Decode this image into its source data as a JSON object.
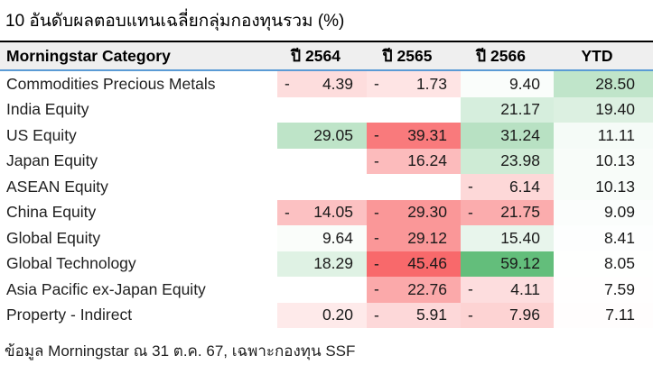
{
  "title": "10 อันดับผลตอบแทนเฉลี่ยกลุ่มกองทุนรวม (%)",
  "footer": "ข้อมูล Morningstar ณ 31 ต.ค. 67, เฉพาะกองทุน SSF",
  "colors": {
    "header_bg": "#efefef",
    "header_top_rule": "#000000",
    "header_bottom_rule": "#5b9bd5",
    "scale_min_red": "#F8696B",
    "scale_mid_white": "#FFFFFF",
    "scale_max_green": "#63BE7B"
  },
  "chart_data": {
    "type": "table",
    "title": "10 อันดับผลตอบแทนเฉลี่ยกลุ่มกองทุนรวม (%)",
    "columns": [
      "Morningstar Category",
      "ปี 2564",
      "ปี 2565",
      "ปี 2566",
      "YTD"
    ],
    "conditional_formatting": {
      "style": "3-color scale red-white-green (Excel)",
      "min": {
        "value": -45.46,
        "color": "#F8696B"
      },
      "mid": {
        "value": 7.82,
        "color": "#FFFFFF"
      },
      "max": {
        "value": 59.12,
        "color": "#63BE7B"
      },
      "negative_display": "minus sign flush-left, magnitude right-aligned"
    },
    "rows": [
      {
        "category": "Commodities Precious Metals",
        "cells": [
          {
            "value": -4.39,
            "display": "4.39",
            "negative": true,
            "bg": "#FDDDDD"
          },
          {
            "value": -1.73,
            "display": "1.73",
            "negative": true,
            "bg": "#FEE4E4"
          },
          {
            "value": 9.4,
            "display": "9.40",
            "negative": false,
            "bg": "#FAFDFB"
          },
          {
            "value": 28.5,
            "display": "28.50",
            "negative": false,
            "bg": "#C0E5CA"
          }
        ]
      },
      {
        "category": "India Equity",
        "cells": [
          null,
          null,
          {
            "value": 21.17,
            "display": "21.17",
            "negative": false,
            "bg": "#D6EEDD"
          },
          {
            "value": 19.4,
            "display": "19.40",
            "negative": false,
            "bg": "#DCF0E1"
          }
        ]
      },
      {
        "category": "US Equity",
        "cells": [
          {
            "value": 29.05,
            "display": "29.05",
            "negative": false,
            "bg": "#BEE4C8"
          },
          {
            "value": -39.31,
            "display": "39.31",
            "negative": true,
            "bg": "#F97A7C"
          },
          {
            "value": 31.24,
            "display": "31.24",
            "negative": false,
            "bg": "#B8E1C3"
          },
          {
            "value": 11.11,
            "display": "11.11",
            "negative": false,
            "bg": "#F5FBF7"
          }
        ]
      },
      {
        "category": "Japan Equity",
        "cells": [
          null,
          {
            "value": -16.24,
            "display": "16.24",
            "negative": true,
            "bg": "#FCBBBC"
          },
          {
            "value": 23.98,
            "display": "23.98",
            "negative": false,
            "bg": "#CEEBD5"
          },
          {
            "value": 10.13,
            "display": "10.13",
            "negative": false,
            "bg": "#F8FCF9"
          }
        ]
      },
      {
        "category": "ASEAN Equity",
        "cells": [
          null,
          null,
          {
            "value": -6.14,
            "display": "6.14",
            "negative": true,
            "bg": "#FDD8D8"
          },
          {
            "value": 10.13,
            "display": "10.13",
            "negative": false,
            "bg": "#F8FCF9"
          }
        ]
      },
      {
        "category": "China Equity",
        "cells": [
          {
            "value": -14.05,
            "display": "14.05",
            "negative": true,
            "bg": "#FCC1C2"
          },
          {
            "value": -29.3,
            "display": "29.30",
            "negative": true,
            "bg": "#FA9798"
          },
          {
            "value": -21.75,
            "display": "21.75",
            "negative": true,
            "bg": "#FBACAD"
          },
          {
            "value": 9.09,
            "display": "9.09",
            "negative": false,
            "bg": "#FBFDFC"
          }
        ]
      },
      {
        "category": "Global Equity",
        "cells": [
          {
            "value": 9.64,
            "display": "9.64",
            "negative": false,
            "bg": "#FAFDFA"
          },
          {
            "value": -29.12,
            "display": "29.12",
            "negative": true,
            "bg": "#FA9798"
          },
          {
            "value": 15.4,
            "display": "15.40",
            "negative": false,
            "bg": "#E8F5EC"
          },
          {
            "value": 8.41,
            "display": "8.41",
            "negative": false,
            "bg": "#FDFEFE"
          }
        ]
      },
      {
        "category": "Global Technology",
        "cells": [
          {
            "value": 18.29,
            "display": "18.29",
            "negative": false,
            "bg": "#DFF2E4"
          },
          {
            "value": -45.46,
            "display": "45.46",
            "negative": true,
            "bg": "#F8696B"
          },
          {
            "value": 59.12,
            "display": "59.12",
            "negative": false,
            "bg": "#63BE7B"
          },
          {
            "value": 8.05,
            "display": "8.05",
            "negative": false,
            "bg": "#FEFFFE"
          }
        ]
      },
      {
        "category": "Asia Pacific ex-Japan Equity",
        "cells": [
          null,
          {
            "value": -22.76,
            "display": "22.76",
            "negative": true,
            "bg": "#FBA9AA"
          },
          {
            "value": -4.11,
            "display": "4.11",
            "negative": true,
            "bg": "#FDDDDE"
          },
          {
            "value": 7.59,
            "display": "7.59",
            "negative": false,
            "bg": "#FFFEFE"
          }
        ]
      },
      {
        "category": "Property - Indirect",
        "cells": [
          {
            "value": 0.2,
            "display": "0.20",
            "negative": false,
            "bg": "#FEEAEA"
          },
          {
            "value": -5.91,
            "display": "5.91",
            "negative": true,
            "bg": "#FDD8D9"
          },
          {
            "value": -7.96,
            "display": "7.96",
            "negative": true,
            "bg": "#FDD3D3"
          },
          {
            "value": 7.11,
            "display": "7.11",
            "negative": false,
            "bg": "#FFFDFD"
          }
        ]
      }
    ]
  }
}
